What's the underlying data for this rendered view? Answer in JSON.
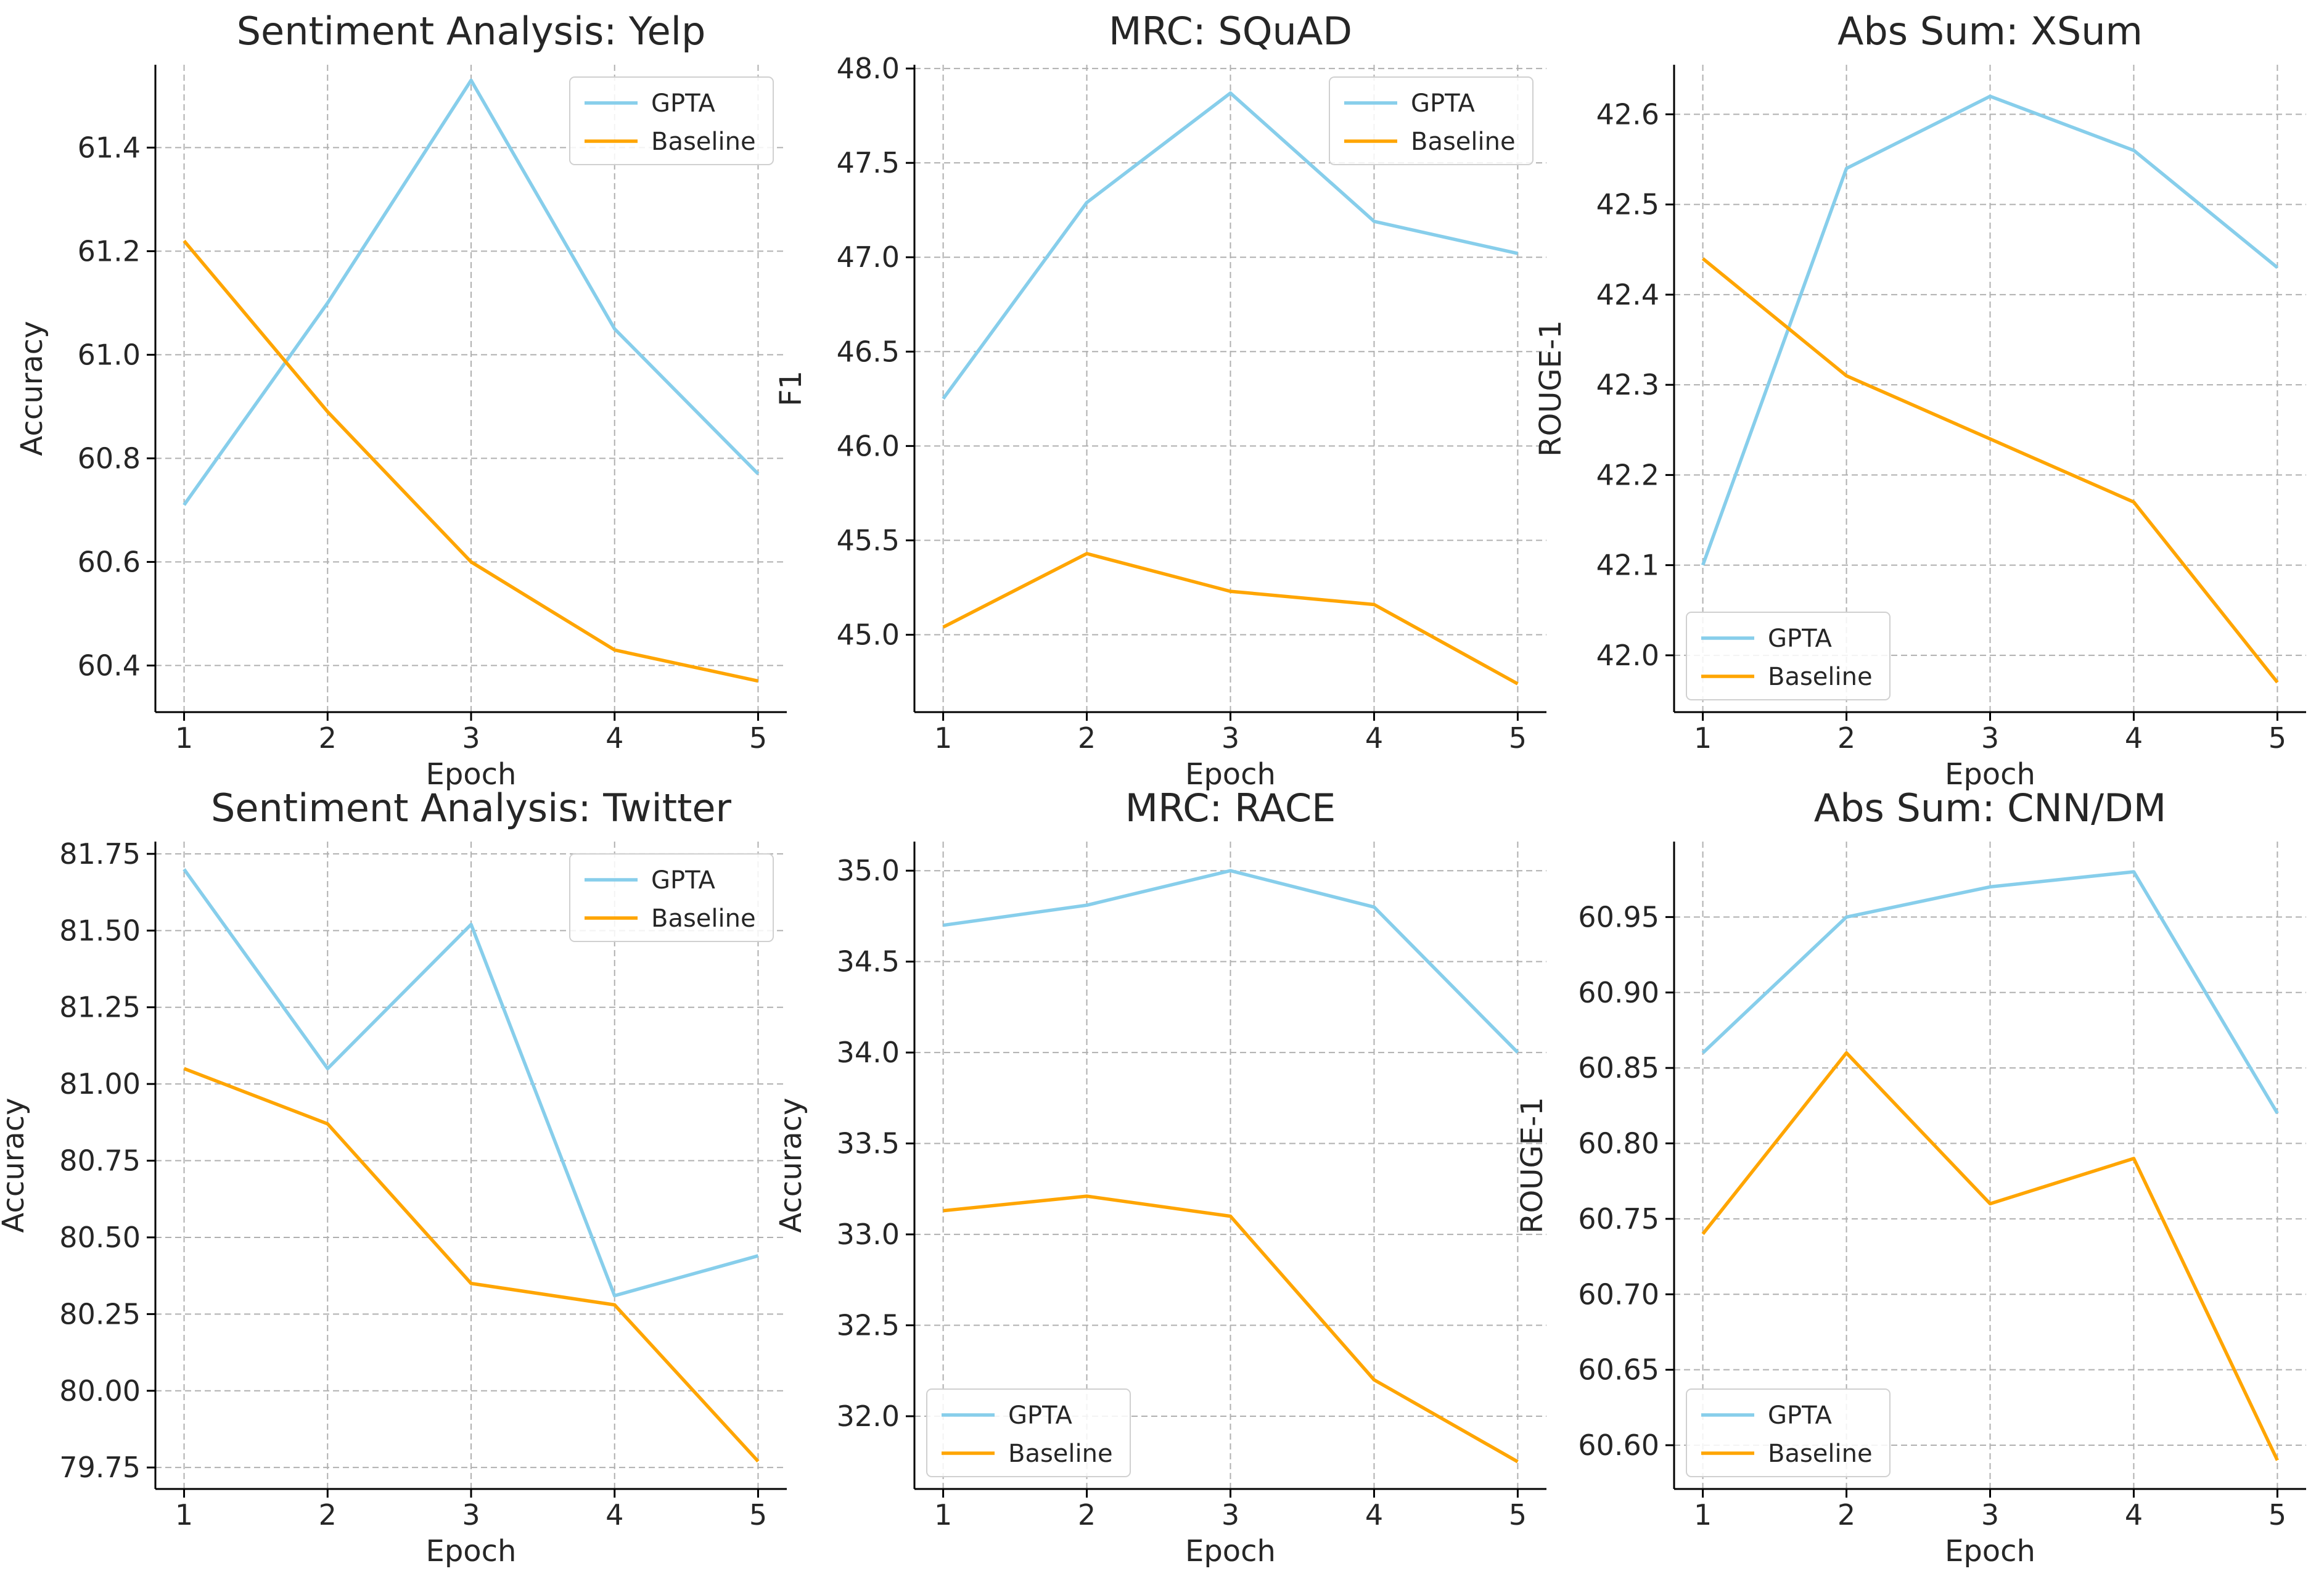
{
  "figure": {
    "colors": {
      "GPTA": "#87CEEB",
      "Baseline": "#FFA500",
      "grid": "#b0b0b0",
      "axis": "#000000",
      "text": "#262626"
    }
  },
  "chart_data": [
    {
      "type": "line",
      "title": "Sentiment Analysis: Yelp",
      "xlabel": "Epoch",
      "ylabel": "Accuracy",
      "x": [
        1,
        2,
        3,
        4,
        5
      ],
      "xlim": [
        0.8,
        5.2
      ],
      "ylim": [
        60.31,
        61.56
      ],
      "yticks": [
        60.4,
        60.6,
        60.8,
        61.0,
        61.2,
        61.4
      ],
      "ytick_labels": [
        "60.4",
        "60.6",
        "60.8",
        "61.0",
        "61.2",
        "61.4"
      ],
      "grid": true,
      "legend": "top-right",
      "series": [
        {
          "name": "GPTA",
          "values": [
            60.71,
            61.1,
            61.53,
            61.05,
            60.77
          ]
        },
        {
          "name": "Baseline",
          "values": [
            61.22,
            60.89,
            60.6,
            60.43,
            60.37
          ]
        }
      ]
    },
    {
      "type": "line",
      "title": "MRC: SQuAD",
      "xlabel": "Epoch",
      "ylabel": "F1",
      "x": [
        1,
        2,
        3,
        4,
        5
      ],
      "xlim": [
        0.8,
        5.2
      ],
      "ylim": [
        44.59,
        48.02
      ],
      "yticks": [
        45.0,
        45.5,
        46.0,
        46.5,
        47.0,
        47.5,
        48.0
      ],
      "ytick_labels": [
        "45.0",
        "45.5",
        "46.0",
        "46.5",
        "47.0",
        "47.5",
        "48.0"
      ],
      "grid": true,
      "legend": "top-right",
      "series": [
        {
          "name": "GPTA",
          "values": [
            46.25,
            47.29,
            47.87,
            47.19,
            47.02
          ]
        },
        {
          "name": "Baseline",
          "values": [
            45.04,
            45.43,
            45.23,
            45.16,
            44.74
          ]
        }
      ]
    },
    {
      "type": "line",
      "title": "Abs Sum: XSum",
      "xlabel": "Epoch",
      "ylabel": "ROUGE-1",
      "x": [
        1,
        2,
        3,
        4,
        5
      ],
      "xlim": [
        0.8,
        5.2
      ],
      "ylim": [
        41.937,
        42.655
      ],
      "yticks": [
        42.0,
        42.1,
        42.2,
        42.3,
        42.4,
        42.5,
        42.6
      ],
      "ytick_labels": [
        "42.0",
        "42.1",
        "42.2",
        "42.3",
        "42.4",
        "42.5",
        "42.6"
      ],
      "grid": true,
      "legend": "bottom-left",
      "series": [
        {
          "name": "GPTA",
          "values": [
            42.1,
            42.54,
            42.62,
            42.56,
            42.43
          ]
        },
        {
          "name": "Baseline",
          "values": [
            42.44,
            42.31,
            42.24,
            42.17,
            41.97
          ]
        }
      ]
    },
    {
      "type": "line",
      "title": "Sentiment Analysis: Twitter",
      "xlabel": "Epoch",
      "ylabel": "Accuracy",
      "x": [
        1,
        2,
        3,
        4,
        5
      ],
      "xlim": [
        0.8,
        5.2
      ],
      "ylim": [
        79.68,
        81.79
      ],
      "yticks": [
        79.75,
        80.0,
        80.25,
        80.5,
        80.75,
        81.0,
        81.25,
        81.5,
        81.75
      ],
      "ytick_labels": [
        "79.75",
        "80.00",
        "80.25",
        "80.50",
        "80.75",
        "81.00",
        "81.25",
        "81.50",
        "81.75"
      ],
      "grid": true,
      "legend": "top-right",
      "series": [
        {
          "name": "GPTA",
          "values": [
            81.7,
            81.05,
            81.52,
            80.31,
            80.44
          ]
        },
        {
          "name": "Baseline",
          "values": [
            81.05,
            80.87,
            80.35,
            80.28,
            79.77
          ]
        }
      ]
    },
    {
      "type": "line",
      "title": "MRC: RACE",
      "xlabel": "Epoch",
      "ylabel": "Accuracy",
      "x": [
        1,
        2,
        3,
        4,
        5
      ],
      "xlim": [
        0.8,
        5.2
      ],
      "ylim": [
        31.6,
        35.16
      ],
      "yticks": [
        32.0,
        32.5,
        33.0,
        33.5,
        34.0,
        34.5,
        35.0
      ],
      "ytick_labels": [
        "32.0",
        "32.5",
        "33.0",
        "33.5",
        "34.0",
        "34.5",
        "35.0"
      ],
      "grid": true,
      "legend": "bottom-left",
      "series": [
        {
          "name": "GPTA",
          "values": [
            34.7,
            34.81,
            35.0,
            34.8,
            34.0
          ]
        },
        {
          "name": "Baseline",
          "values": [
            33.13,
            33.21,
            33.1,
            32.2,
            31.75
          ]
        }
      ]
    },
    {
      "type": "line",
      "title": "Abs Sum: CNN/DM",
      "xlabel": "Epoch",
      "ylabel": "ROUGE-1",
      "x": [
        1,
        2,
        3,
        4,
        5
      ],
      "xlim": [
        0.8,
        5.2
      ],
      "ylim": [
        60.571,
        61.0
      ],
      "yticks": [
        60.6,
        60.65,
        60.7,
        60.75,
        60.8,
        60.85,
        60.9,
        60.95
      ],
      "ytick_labels": [
        "60.60",
        "60.65",
        "60.70",
        "60.75",
        "60.80",
        "60.85",
        "60.90",
        "60.95"
      ],
      "grid": true,
      "legend": "bottom-left",
      "series": [
        {
          "name": "GPTA",
          "values": [
            60.86,
            60.95,
            60.97,
            60.98,
            60.82
          ]
        },
        {
          "name": "Baseline",
          "values": [
            60.74,
            60.86,
            60.76,
            60.79,
            60.59
          ]
        }
      ]
    }
  ]
}
